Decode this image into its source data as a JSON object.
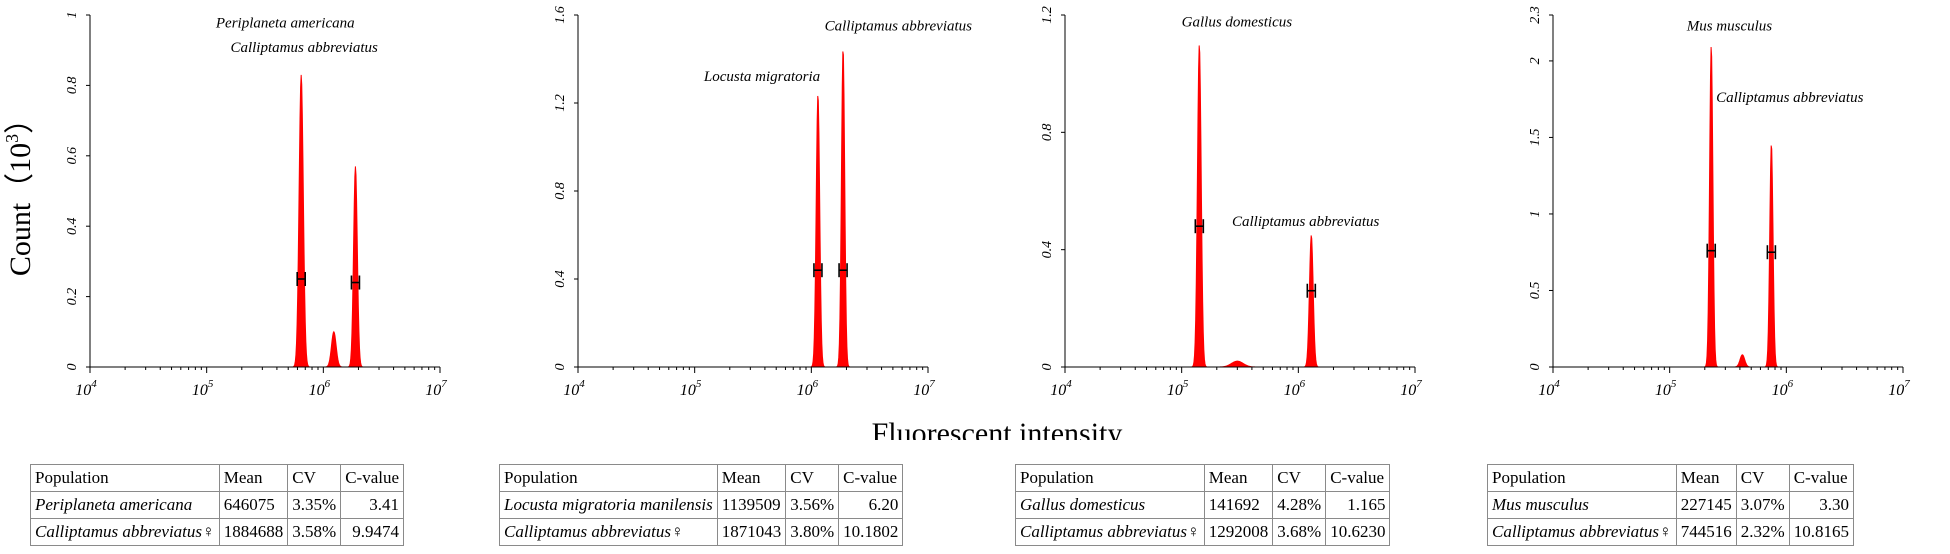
{
  "common": {
    "ylabel": "Count（10",
    "ylabel_sup": "3",
    "ylabel_end": "）",
    "xlabel": "Fluorescent intensity",
    "x_ticks": [
      "10^4",
      "10^5",
      "10^6",
      "10^7"
    ],
    "peak_color": "#ff0000"
  },
  "chart_data": [
    {
      "type": "area",
      "x_scale": "log",
      "xlim": [
        10000,
        10000000
      ],
      "ylim": [
        0,
        1.0
      ],
      "y_ticks": [
        0,
        0.2,
        0.4,
        0.6,
        0.8,
        1
      ],
      "y_tick_labels": [
        "0",
        "0.2",
        "0.4",
        "0.6",
        "0.8",
        "1"
      ],
      "peaks": [
        {
          "x": 646075,
          "height": 0.83,
          "width": 0.018
        },
        {
          "x": 1230000,
          "height": 0.1,
          "width": 0.02
        },
        {
          "x": 1884688,
          "height": 0.57,
          "width": 0.016
        }
      ],
      "markers": [
        {
          "x": 646075,
          "y": 0.25
        },
        {
          "x": 1884688,
          "y": 0.24
        }
      ],
      "annotations": [
        {
          "text": "Periplaneta americana",
          "x": 120000,
          "y": 0.965
        },
        {
          "text": "Calliptamus abbreviatus",
          "x": 160000,
          "y": 0.895
        }
      ],
      "table": {
        "headers": [
          "Population",
          "Mean",
          "CV",
          "C-value"
        ],
        "rows": [
          [
            "Periplaneta americana",
            "646075",
            "3.35%",
            "3.41"
          ],
          [
            "Calliptamus abbreviatus♀",
            "1884688",
            "3.58%",
            "9.9474"
          ]
        ]
      }
    },
    {
      "type": "area",
      "x_scale": "log",
      "xlim": [
        10000,
        10000000
      ],
      "ylim": [
        0,
        1.6
      ],
      "y_ticks": [
        0,
        0.4,
        0.8,
        1.2,
        1.6
      ],
      "y_tick_labels": [
        "0",
        "0.4",
        "0.8",
        "1.2",
        "1.6"
      ],
      "peaks": [
        {
          "x": 1139509,
          "height": 1.24,
          "width": 0.015
        },
        {
          "x": 1871043,
          "height": 1.45,
          "width": 0.014
        }
      ],
      "markers": [
        {
          "x": 1139509,
          "y": 0.44
        },
        {
          "x": 1871043,
          "y": 0.44
        }
      ],
      "annotations": [
        {
          "text": "Calliptamus abbreviatus",
          "x": 1300000,
          "y": 1.53
        },
        {
          "text": "Locusta migratoria",
          "x": 120000,
          "y": 1.3
        }
      ],
      "table": {
        "headers": [
          "Population",
          "Mean",
          "CV",
          "C-value"
        ],
        "rows": [
          [
            "Locusta migratoria manilensis",
            "1139509",
            "3.56%",
            "6.20"
          ],
          [
            "Calliptamus abbreviatus♀",
            "1871043",
            "3.80%",
            "10.1802"
          ]
        ]
      }
    },
    {
      "type": "area",
      "x_scale": "log",
      "xlim": [
        10000,
        10000000
      ],
      "ylim": [
        0,
        1.2
      ],
      "y_ticks": [
        0,
        0.4,
        0.8,
        1.2
      ],
      "y_tick_labels": [
        "0",
        "0.4",
        "0.8",
        "1.2"
      ],
      "peaks": [
        {
          "x": 141692,
          "height": 1.1,
          "width": 0.016
        },
        {
          "x": 300000,
          "height": 0.02,
          "width": 0.05
        },
        {
          "x": 1292008,
          "height": 0.45,
          "width": 0.016
        }
      ],
      "markers": [
        {
          "x": 141692,
          "y": 0.48
        },
        {
          "x": 1292008,
          "y": 0.26
        }
      ],
      "annotations": [
        {
          "text": "Gallus domesticus",
          "x": 100000,
          "y": 1.16
        },
        {
          "text": "Calliptamus abbreviatus",
          "x": 270000,
          "y": 0.48
        }
      ],
      "table": {
        "headers": [
          "Population",
          "Mean",
          "CV",
          "C-value"
        ],
        "rows": [
          [
            "Gallus domesticus",
            "141692",
            "4.28%",
            "1.165"
          ],
          [
            "Calliptamus abbreviatus♀",
            "1292008",
            "3.68%",
            "10.6230"
          ]
        ]
      }
    },
    {
      "type": "area",
      "x_scale": "log",
      "xlim": [
        10000,
        10000000
      ],
      "ylim": [
        0,
        2.3
      ],
      "y_ticks": [
        0,
        0.5,
        1,
        1.5,
        2,
        2.3
      ],
      "y_tick_labels": [
        "0",
        "0.5",
        "1",
        "1.5",
        "2",
        "2.3"
      ],
      "peaks": [
        {
          "x": 227145,
          "height": 2.1,
          "width": 0.014
        },
        {
          "x": 420000,
          "height": 0.08,
          "width": 0.02
        },
        {
          "x": 744516,
          "height": 1.46,
          "width": 0.014
        }
      ],
      "markers": [
        {
          "x": 227145,
          "y": 0.76
        },
        {
          "x": 744516,
          "y": 0.75
        }
      ],
      "annotations": [
        {
          "text": "Mus musculus",
          "x": 140000,
          "y": 2.2
        },
        {
          "text": "Calliptamus abbreviatus",
          "x": 250000,
          "y": 1.73
        }
      ],
      "table": {
        "headers": [
          "Population",
          "Mean",
          "CV",
          "C-value"
        ],
        "rows": [
          [
            "Mus musculus",
            "227145",
            "3.07%",
            "3.30"
          ],
          [
            "Calliptamus abbreviatus♀",
            "744516",
            "2.32%",
            "10.8165"
          ]
        ]
      }
    }
  ]
}
